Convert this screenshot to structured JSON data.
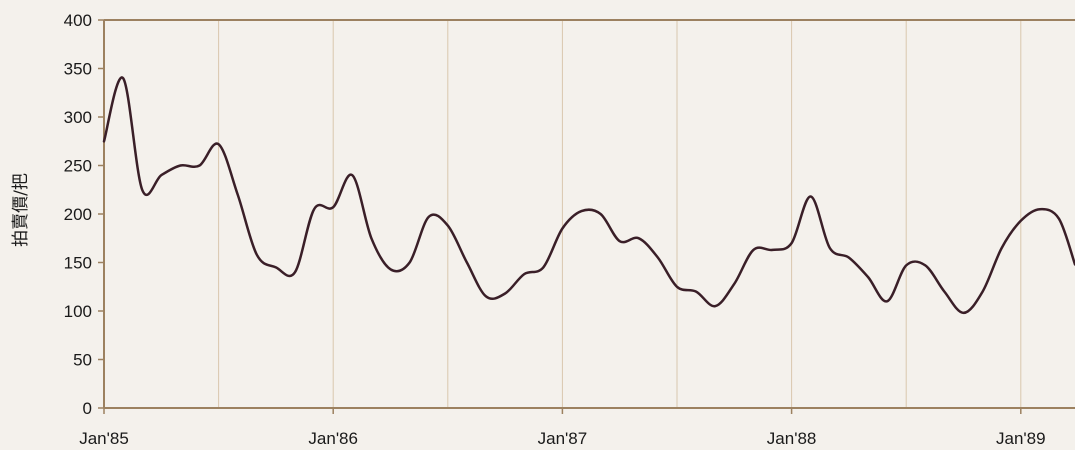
{
  "colors": {
    "background": "#f4f1ec",
    "axis": "#9c8160",
    "grid": "#d9c7ae",
    "line": "#3a1f28",
    "text": "#1a1a1a"
  },
  "chart_data": {
    "type": "line",
    "title": "",
    "xlabel": "",
    "ylabel": "拍賣價/把",
    "ylim": [
      0,
      400
    ],
    "yticks": [
      0,
      50,
      100,
      150,
      200,
      250,
      300,
      350,
      400
    ],
    "xlim": [
      "1985-01",
      "1989-04"
    ],
    "xtick_labels": [
      {
        "date": "1985-01",
        "label": "Jan'85"
      },
      {
        "date": "1986-01",
        "label": "Jan'86"
      },
      {
        "date": "1987-01",
        "label": "Jan'87"
      },
      {
        "date": "1988-01",
        "label": "Jan'88"
      },
      {
        "date": "1989-01",
        "label": "Jan'89"
      }
    ],
    "vertical_gridlines": [
      "1985-07",
      "1986-01",
      "1986-07",
      "1987-01",
      "1987-07",
      "1988-01",
      "1988-07",
      "1989-01"
    ],
    "grid": true,
    "legend": "none",
    "series": [
      {
        "x": [
          "1985-01",
          "1985-02",
          "1985-03",
          "1985-04",
          "1985-05",
          "1985-06",
          "1985-07",
          "1985-08",
          "1985-09",
          "1985-10",
          "1985-11",
          "1985-12",
          "1986-01",
          "1986-02",
          "1986-03",
          "1986-04",
          "1986-05",
          "1986-06",
          "1986-07",
          "1986-08",
          "1986-09",
          "1986-10",
          "1986-11",
          "1986-12",
          "1987-01",
          "1987-02",
          "1987-03",
          "1987-04",
          "1987-05",
          "1987-06",
          "1987-07",
          "1987-08",
          "1987-09",
          "1987-10",
          "1987-11",
          "1987-12",
          "1988-01",
          "1988-02",
          "1988-03",
          "1988-04",
          "1988-05",
          "1988-06",
          "1988-07",
          "1988-08",
          "1988-09",
          "1988-10",
          "1988-11",
          "1988-12",
          "1989-01",
          "1989-02",
          "1989-03",
          "1989-04"
        ],
        "y": [
          275,
          340,
          225,
          240,
          250,
          250,
          272,
          220,
          158,
          145,
          140,
          205,
          207,
          240,
          175,
          143,
          150,
          197,
          188,
          150,
          115,
          118,
          138,
          145,
          185,
          203,
          200,
          172,
          175,
          155,
          125,
          120,
          105,
          128,
          163,
          163,
          170,
          218,
          165,
          155,
          135,
          110,
          147,
          147,
          120,
          98,
          120,
          165,
          193,
          205,
          195,
          148
        ]
      }
    ]
  }
}
